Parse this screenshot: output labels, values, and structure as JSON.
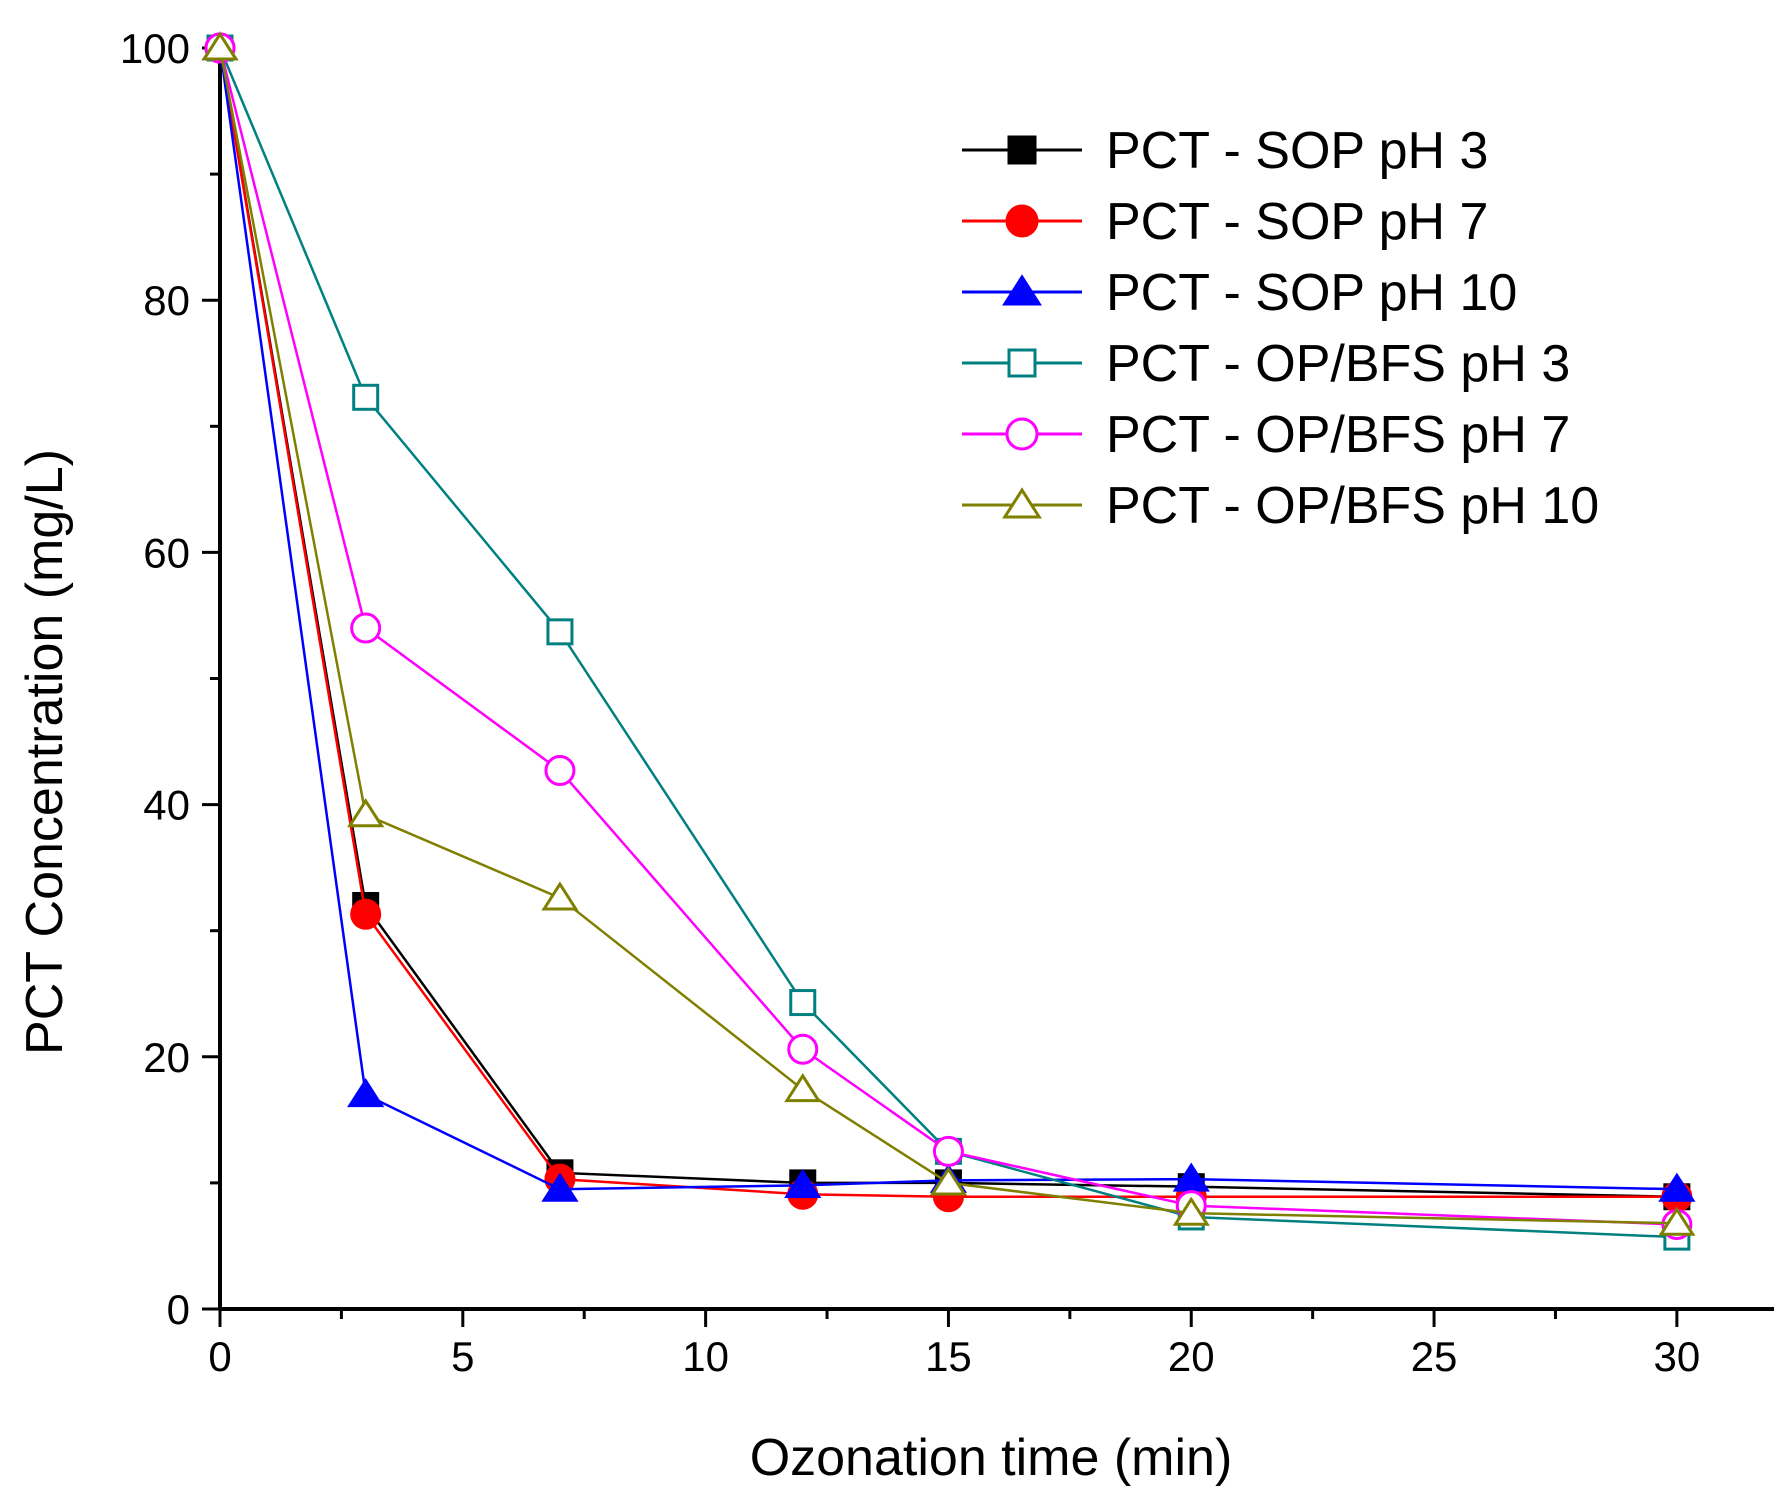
{
  "chart_data": {
    "type": "line",
    "title": "",
    "xlabel": "Ozonation time (min)",
    "ylabel": "PCT Concentration (mg/L)",
    "xlim": [
      0,
      32
    ],
    "ylim": [
      0,
      100
    ],
    "xticks": [
      0,
      5,
      10,
      15,
      20,
      25,
      30
    ],
    "yticks": [
      0,
      20,
      40,
      60,
      80,
      100
    ],
    "x": [
      0,
      3,
      7,
      12,
      15,
      20,
      30
    ],
    "legend_position": "top-right",
    "grid": false,
    "series": [
      {
        "name": "PCT - SOP pH 3",
        "color": "#000000",
        "marker": "square",
        "filled": true,
        "values": [
          100,
          32,
          10.8,
          10,
          10,
          9.7,
          8.9
        ]
      },
      {
        "name": "PCT - SOP pH 7",
        "color": "#ff0000",
        "marker": "circle",
        "filled": true,
        "values": [
          100,
          31.3,
          10.3,
          9.1,
          8.9,
          8.9,
          8.9
        ]
      },
      {
        "name": "PCT - SOP pH 10",
        "color": "#0000ff",
        "marker": "triangle",
        "filled": true,
        "values": [
          100,
          17,
          9.5,
          9.8,
          10.2,
          10.3,
          9.5
        ]
      },
      {
        "name": "PCT - OP/BFS pH 3",
        "color": "#008080",
        "marker": "square",
        "filled": false,
        "values": [
          100,
          72.3,
          53.7,
          24.3,
          12.5,
          7.3,
          5.7
        ]
      },
      {
        "name": "PCT - OP/BFS pH 7",
        "color": "#ff00ff",
        "marker": "circle",
        "filled": false,
        "values": [
          100,
          54,
          42.7,
          20.6,
          12.5,
          8.2,
          6.7
        ]
      },
      {
        "name": "PCT - OP/BFS pH 10",
        "color": "#808000",
        "marker": "triangle",
        "filled": false,
        "values": [
          100,
          39.2,
          32.6,
          17.4,
          10,
          7.6,
          6.8
        ]
      }
    ]
  }
}
